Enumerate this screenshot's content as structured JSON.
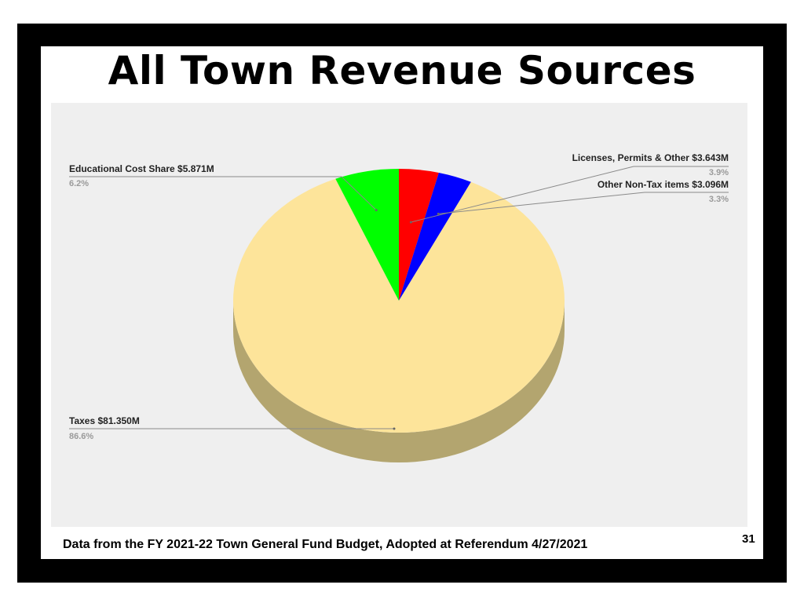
{
  "slide": {
    "title": "All Town Revenue Sources",
    "footer": "Data from the FY 2021-22 Town General Fund Budget, Adopted at Referendum 4/27/2021",
    "page_number": "31"
  },
  "chart_data": {
    "type": "pie",
    "style": "3d",
    "start_angle_deg": 0,
    "direction": "clockwise",
    "slices": [
      {
        "label": "Licenses, Permits & Other $3.643M",
        "value": 3.643,
        "percent": "3.9%",
        "color": "#ff0000",
        "callout": "right"
      },
      {
        "label": "Other Non-Tax items $3.096M",
        "value": 3.096,
        "percent": "3.3%",
        "color": "#0000ff",
        "callout": "right"
      },
      {
        "label": "Taxes $81.350M",
        "value": 81.35,
        "percent": "86.6%",
        "color": "#fde49a",
        "side_color": "#b3a56f",
        "callout": "left"
      },
      {
        "label": "Educational Cost Share $5.871M",
        "value": 5.871,
        "percent": "6.2%",
        "color": "#00ff00",
        "callout": "left"
      }
    ]
  }
}
